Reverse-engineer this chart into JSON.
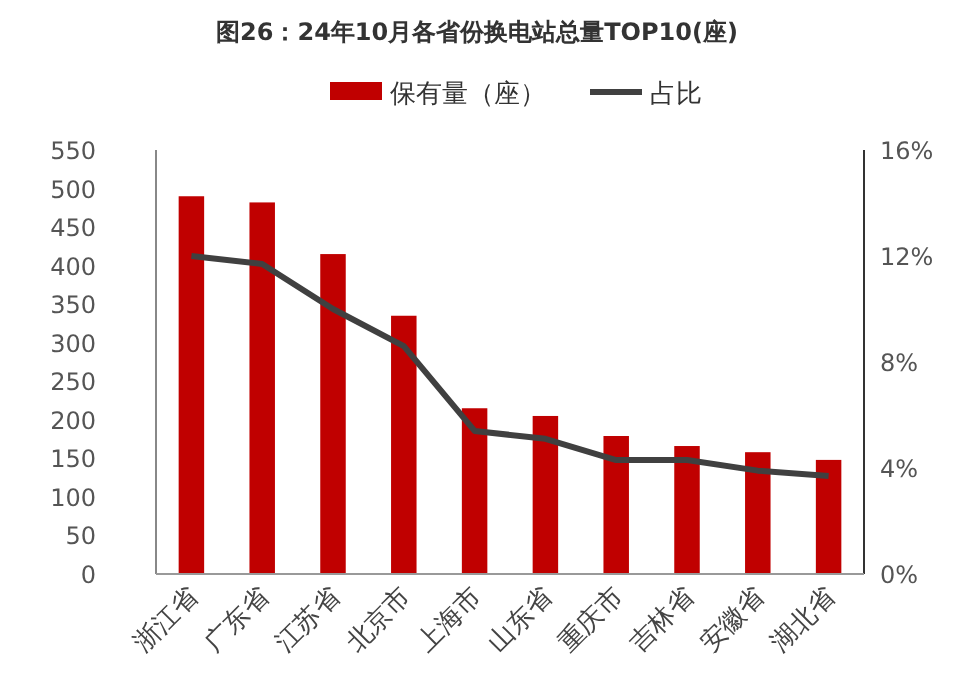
{
  "chart_data": {
    "type": "bar",
    "title": "图26：24年10月各省份换电站总量TOP10(座)",
    "categories": [
      "浙江省",
      "广东省",
      "江苏省",
      "北京市",
      "上海市",
      "山东省",
      "重庆市",
      "吉林省",
      "安徽省",
      "湖北省"
    ],
    "series": [
      {
        "name": "保有量（座）",
        "color": "#c00000",
        "values": [
          490,
          482,
          415,
          335,
          215,
          205,
          179,
          166,
          158,
          148
        ]
      },
      {
        "name": "占比",
        "type": "line",
        "axis": "y2",
        "color": "#404040",
        "marker": "none",
        "line_style": "solid",
        "values": [
          12.0,
          11.7,
          10.0,
          8.6,
          5.4,
          5.1,
          4.3,
          4.3,
          3.9,
          3.7
        ]
      }
    ],
    "ylim": [
      0,
      550
    ],
    "yticks": [
      0,
      50,
      100,
      150,
      200,
      250,
      300,
      350,
      400,
      450,
      500,
      550
    ],
    "y2lim": [
      0,
      16
    ],
    "y2ticks": [
      {
        "value": 0,
        "label": "0%"
      },
      {
        "value": 4,
        "label": "4%"
      },
      {
        "value": 8,
        "label": "8%"
      },
      {
        "value": 12,
        "label": "12%"
      },
      {
        "value": 16,
        "label": "16%"
      }
    ],
    "legend": "top",
    "grid": false
  }
}
